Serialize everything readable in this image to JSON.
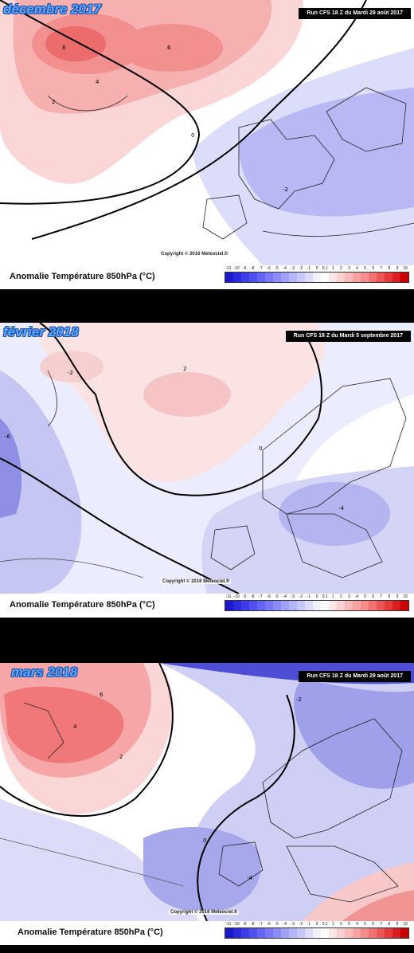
{
  "panels": [
    {
      "title": "décembre 2017",
      "run": "Run CFS 18 Z du Mardi 29 août 2017",
      "copyright": "Copyright © 2016 Meteociel.fr",
      "caption": "Anomalie Température 850hPa (°C)",
      "labels": [
        "8",
        "6",
        "4",
        "2",
        "0",
        "-2"
      ]
    },
    {
      "title": "février 2018",
      "run": "Run CFS 18 Z du Mardi 5 septembre 2017",
      "copyright": "Copyright © 2016 Meteociel.fr",
      "caption": "Anomalie Température 850hPa (°C)",
      "labels": [
        "2",
        "-2",
        "-6",
        "-4",
        "0"
      ]
    },
    {
      "title": "mars 2018",
      "run": "Run CFS 18 Z du Mardi 29 août 2017",
      "copyright": "Copyright © 2016 Meteociel.fr",
      "caption": "Anomalie Température 850hPa (°C)",
      "labels": [
        "6",
        "4",
        "2",
        "-2",
        "-4",
        "0"
      ]
    }
  ],
  "scale_ticks": [
    "-11",
    "-10",
    "-9",
    "-8",
    "-7",
    "-6",
    "-5",
    "-4",
    "-3",
    "-2",
    "-1",
    "0",
    "0.1",
    "1",
    "2",
    "3",
    "4",
    "5",
    "6",
    "7",
    "8",
    "9",
    "10"
  ],
  "scale_colors": [
    "#1a1acc",
    "#2b2bdd",
    "#3d3de8",
    "#5050ee",
    "#6464f2",
    "#7878f5",
    "#8c8cf7",
    "#a0a0f9",
    "#b4b4fb",
    "#c8c8fc",
    "#dcdcfe",
    "#f2f2ff",
    "#ffffff",
    "#fde6e6",
    "#fbd0d0",
    "#f9baba",
    "#f7a3a3",
    "#f48c8c",
    "#f07272",
    "#ea5656",
    "#e23a3a",
    "#d81e1e",
    "#cc0000"
  ],
  "colors": {
    "warm": "#f6b5b5",
    "warm_strong": "#ee7f7f",
    "cold": "#c9c9f6",
    "cold_strong": "#8f8fe8",
    "title_blue": "#5aa9ff"
  }
}
